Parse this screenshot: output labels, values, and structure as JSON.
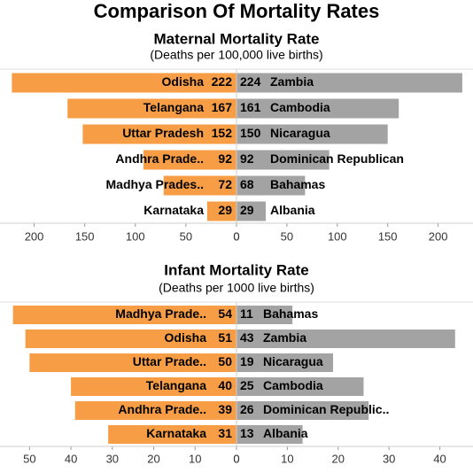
{
  "title": "Comparison Of Mortality Rates",
  "chart_data": [
    {
      "type": "butterfly",
      "title": "Maternal Mortality Rate",
      "subtitle": "(Deaths per 100,000 live births)",
      "left": {
        "categories": [
          "Odisha",
          "Telangana",
          "Uttar Pradesh",
          "Andhra Prade..",
          "Madhya Prades..",
          "Karnataka"
        ],
        "values": [
          222,
          167,
          152,
          92,
          72,
          29
        ],
        "color": "#f79d45",
        "xlim": [
          0,
          225
        ],
        "xticks": [
          0,
          50,
          100,
          150,
          200
        ]
      },
      "right": {
        "categories": [
          "Zambia",
          "Cambodia",
          "Nicaragua",
          "Dominican Republican",
          "Bahamas",
          "Albania"
        ],
        "values": [
          224,
          161,
          150,
          92,
          68,
          29
        ],
        "color": "#a3a3a3",
        "xlim": [
          0,
          232
        ],
        "xticks": [
          0,
          50,
          100,
          150,
          200
        ]
      }
    },
    {
      "type": "butterfly",
      "title": "Infant Mortality Rate",
      "subtitle": "(Deaths per 1000 live births)",
      "left": {
        "categories": [
          "Madhya Prade..",
          "Odisha",
          "Uttar Prade..",
          "Telangana",
          "Andhra Prade..",
          "Karnataka"
        ],
        "values": [
          54,
          51,
          50,
          40,
          39,
          31
        ],
        "color": "#f79d45",
        "xlim": [
          0,
          55
        ],
        "xticks": [
          0,
          10,
          20,
          30,
          40,
          50
        ]
      },
      "right": {
        "categories": [
          "Bahamas",
          "Zambia",
          "Nicaragua",
          "Cambodia",
          "Dominican Republic..",
          "Albania"
        ],
        "values": [
          11,
          43,
          19,
          25,
          26,
          13
        ],
        "color": "#a3a3a3",
        "xlim": [
          0,
          46
        ],
        "xticks": [
          0,
          10,
          20,
          30,
          40
        ]
      }
    }
  ]
}
